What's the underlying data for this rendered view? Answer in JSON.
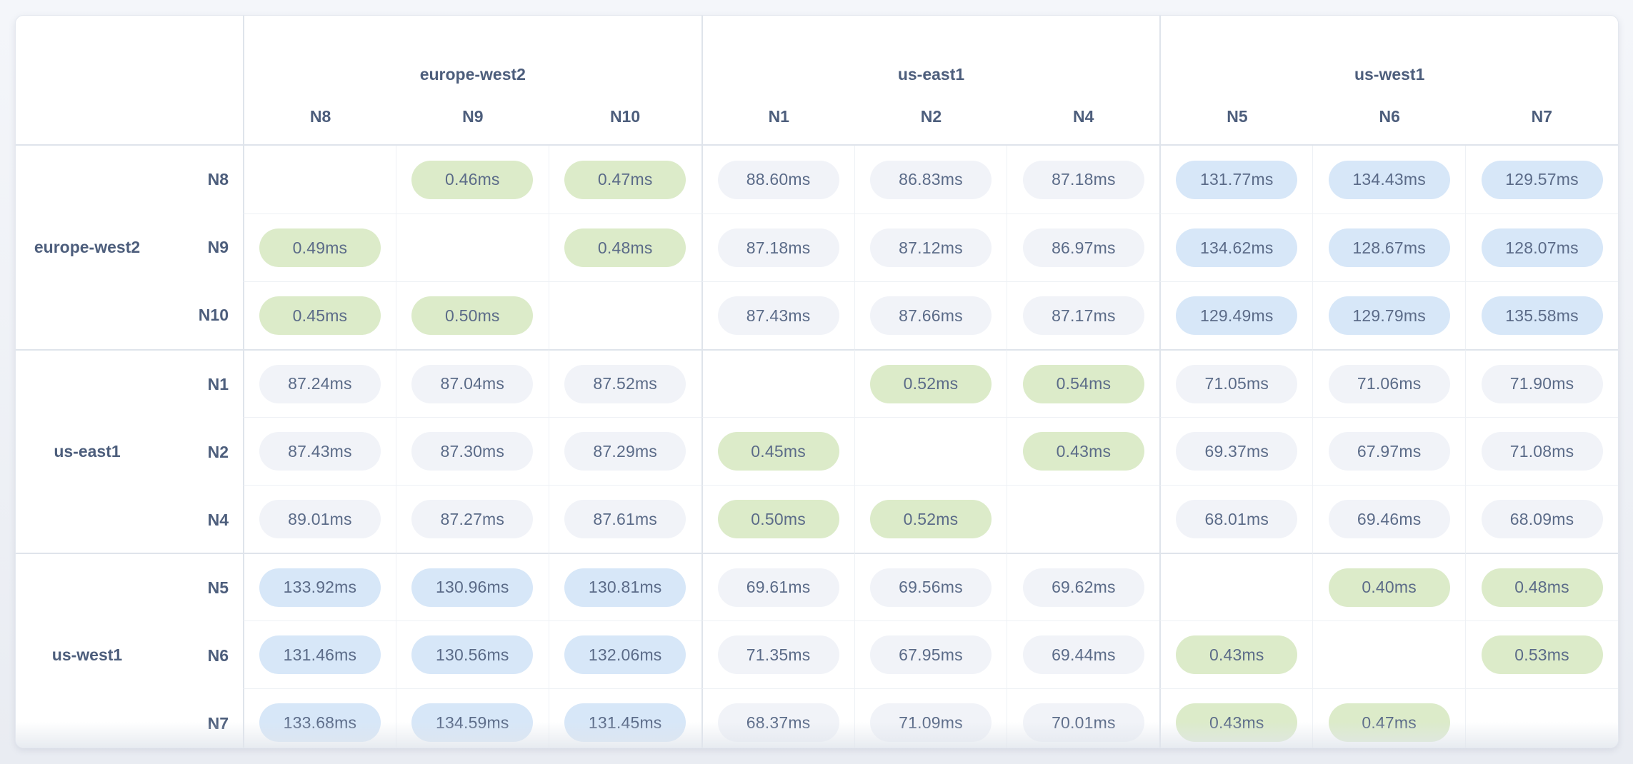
{
  "colors": {
    "page_bg_top": "#f4f6fa",
    "page_bg_bottom": "#e9ecf2",
    "card_bg": "#ffffff",
    "border_inner": "#eef1f5",
    "border_group": "#dfe4eb",
    "text_label": "#4d5e7c",
    "text_value": "#5b6b88",
    "pill_intra_region_green": "#dcebc9",
    "pill_high_latency_blue": "#d7e7f8",
    "pill_normal_gray": "#f1f3f8"
  },
  "pill_rules": {
    "green_if_below_ms": 1,
    "blue_if_at_or_above_ms": 100
  },
  "chart_data": {
    "type": "heatmap",
    "title": "",
    "unit": "ms",
    "decimals": 2,
    "x_groups": [
      {
        "label": "europe-west2",
        "columns": [
          "N8",
          "N9",
          "N10"
        ]
      },
      {
        "label": "us-east1",
        "columns": [
          "N1",
          "N2",
          "N4"
        ]
      },
      {
        "label": "us-west1",
        "columns": [
          "N5",
          "N6",
          "N7"
        ]
      }
    ],
    "y_groups": [
      {
        "label": "europe-west2",
        "rows": [
          "N8",
          "N9",
          "N10"
        ]
      },
      {
        "label": "us-east1",
        "rows": [
          "N1",
          "N2",
          "N4"
        ]
      },
      {
        "label": "us-west1",
        "rows": [
          "N5",
          "N6",
          "N7"
        ]
      }
    ],
    "x": [
      "N8",
      "N9",
      "N10",
      "N1",
      "N2",
      "N4",
      "N5",
      "N6",
      "N7"
    ],
    "y": [
      "N8",
      "N9",
      "N10",
      "N1",
      "N2",
      "N4",
      "N5",
      "N6",
      "N7"
    ],
    "values": [
      [
        null,
        0.46,
        0.47,
        88.6,
        86.83,
        87.18,
        131.77,
        134.43,
        129.57
      ],
      [
        0.49,
        null,
        0.48,
        87.18,
        87.12,
        86.97,
        134.62,
        128.67,
        128.07
      ],
      [
        0.45,
        0.5,
        null,
        87.43,
        87.66,
        87.17,
        129.49,
        129.79,
        135.58
      ],
      [
        87.24,
        87.04,
        87.52,
        null,
        0.52,
        0.54,
        71.05,
        71.06,
        71.9
      ],
      [
        87.43,
        87.3,
        87.29,
        0.45,
        null,
        0.43,
        69.37,
        67.97,
        71.08
      ],
      [
        89.01,
        87.27,
        87.61,
        0.5,
        0.52,
        null,
        68.01,
        69.46,
        68.09
      ],
      [
        133.92,
        130.96,
        130.81,
        69.61,
        69.56,
        69.62,
        null,
        0.4,
        0.48
      ],
      [
        131.46,
        130.56,
        132.06,
        71.35,
        67.95,
        69.44,
        0.43,
        null,
        0.53
      ],
      [
        133.68,
        134.59,
        131.45,
        68.37,
        71.09,
        70.01,
        0.43,
        0.47,
        null
      ]
    ]
  }
}
